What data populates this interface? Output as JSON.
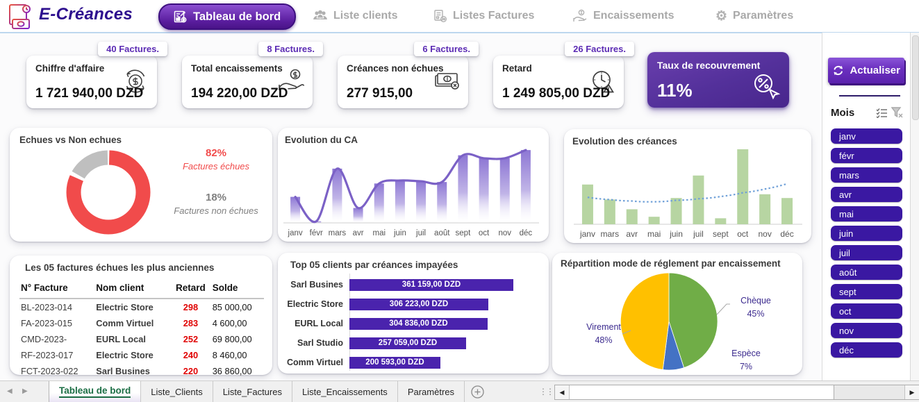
{
  "header": {
    "app_title": "E-Créances",
    "tabs": [
      {
        "label": "Tableau de bord",
        "icon": "dashboard-icon",
        "active": true
      },
      {
        "label": "Liste clients",
        "icon": "clients-icon",
        "active": false
      },
      {
        "label": "Listes Factures",
        "icon": "invoices-icon",
        "active": false
      },
      {
        "label": "Encaissements",
        "icon": "cash-hand-icon",
        "active": false
      },
      {
        "label": "Paramètres",
        "icon": "gear-icon",
        "active": false
      }
    ]
  },
  "kpis": [
    {
      "badge": "40 Factures.",
      "title": "Chiffre d'affaire",
      "value": "1 721 940,00 DZD",
      "icon": "dollar-cycle-icon"
    },
    {
      "badge": "8 Factures.",
      "title": "Total encaissements",
      "value": "194 220,00 DZD",
      "icon": "hand-dollar-icon"
    },
    {
      "badge": "6 Factures.",
      "title": "Créances non échues",
      "value": "277 915,00",
      "icon": "banknote-x-icon"
    },
    {
      "badge": "26 Factures.",
      "title": "Retard",
      "value": "1 249 805,00 DZD",
      "icon": "clock-alert-icon"
    }
  ],
  "recovery": {
    "title": "Taux de recouvrement",
    "value": "11%",
    "icon": "percent-cursor-icon"
  },
  "refresh_button": {
    "label": "Actualiser",
    "icon": "refresh-icon"
  },
  "slicer": {
    "title": "Mois",
    "multiselect_icon": "multiselect-icon",
    "clear_filter_icon": "clear-filter-icon",
    "months": [
      "janv",
      "févr",
      "mars",
      "avr",
      "mai",
      "juin",
      "juil",
      "août",
      "sept",
      "oct",
      "nov",
      "déc"
    ]
  },
  "chart_data": [
    {
      "id": "echues_vs_non_echues",
      "type": "pie",
      "variant": "donut",
      "title": "Echues vs Non echues",
      "legend_position": "right",
      "slices": [
        {
          "label": "Factures échues",
          "value": 82,
          "pct_label": "82%",
          "color": "#f14b4b"
        },
        {
          "label": "Factures non échues",
          "value": 18,
          "pct_label": "18%",
          "color": "#bfbfbf"
        }
      ]
    },
    {
      "id": "evolution_ca",
      "type": "bar",
      "variant": "gradient-bars-with-smooth-line",
      "title": "Evolution du CA",
      "categories": [
        "janv",
        "févr",
        "mars",
        "avr",
        "mai",
        "juin",
        "juil",
        "août",
        "sept",
        "oct",
        "nov",
        "déc"
      ],
      "values": [
        35,
        2,
        73,
        20,
        53,
        57,
        56,
        55,
        91,
        87,
        87,
        98
      ],
      "ylim": [
        0,
        100
      ],
      "grid": false,
      "line_color": "#7b61c6",
      "bar_color": "#8d77d4"
    },
    {
      "id": "evolution_creances",
      "type": "bar",
      "variant": "bars-with-dotted-trend",
      "title": "Evolution des créances",
      "categories": [
        "janv",
        "mars",
        "avr",
        "mai",
        "juin",
        "juil",
        "sept",
        "oct",
        "nov",
        "déc"
      ],
      "values": [
        53,
        33,
        20,
        10,
        35,
        65,
        8,
        100,
        40,
        35
      ],
      "trend": [
        36,
        33,
        31,
        30,
        32,
        34,
        37,
        42,
        47,
        54
      ],
      "ylim": [
        0,
        100
      ],
      "grid": false,
      "bar_color": "#b7d5a2",
      "trend_color": "#6fa0d8"
    },
    {
      "id": "top5_clients_impayes",
      "type": "bar",
      "variant": "horizontal",
      "title": "Top 05 clients par créances impayées",
      "categories": [
        "Sarl Busines",
        "Electric Store",
        "EURL Local",
        "Sarl Studio",
        "Comm Virtuel"
      ],
      "values": [
        361159,
        306223,
        304836,
        257059,
        200593
      ],
      "value_labels": [
        "361 159,00 DZD",
        "306 223,00 DZD",
        "304 836,00 DZD",
        "257 059,00 DZD",
        "200 593,00 DZD"
      ],
      "bar_color": "#4a23ad"
    },
    {
      "id": "mode_reglement",
      "type": "pie",
      "title": "Répartition mode de réglement par encaissement",
      "slices": [
        {
          "label": "Chèque",
          "value": 45,
          "pct_label": "45%",
          "color": "#70ad47"
        },
        {
          "label": "Espèce",
          "value": 7,
          "pct_label": "7%",
          "color": "#4472c4"
        },
        {
          "label": "Virement",
          "value": 48,
          "pct_label": "48%",
          "color": "#ffc000"
        }
      ]
    }
  ],
  "table": {
    "title": "Les 05 factures échues les plus anciennes",
    "headers": [
      "N° Facture",
      "Nom client",
      "Retard",
      "Solde"
    ],
    "rows": [
      {
        "facture": "BL-2023-014",
        "client": "Electric Store",
        "retard": "298",
        "solde": "85 000,00"
      },
      {
        "facture": "FA-2023-015",
        "client": "Comm Virtuel",
        "retard": "283",
        "solde": "4 600,00"
      },
      {
        "facture": "CMD-2023-",
        "client": "EURL Local",
        "retard": "252",
        "solde": "69 800,00"
      },
      {
        "facture": "RF-2023-017",
        "client": "Electric Store",
        "retard": "240",
        "solde": "8 460,00"
      },
      {
        "facture": "FCT-2023-022",
        "client": "Sarl Busines",
        "retard": "220",
        "solde": "36 860,00"
      }
    ]
  },
  "sheet_bar": {
    "tabs": [
      {
        "label": "Tableau de bord",
        "active": true
      },
      {
        "label": "Liste_Clients",
        "active": false
      },
      {
        "label": "Liste_Factures",
        "active": false
      },
      {
        "label": "Liste_Encaissements",
        "active": false
      },
      {
        "label": "Paramètres",
        "active": false
      }
    ]
  },
  "colors": {
    "brand_purple": "#2d0f8e",
    "accent_purple": "#5b2bb4",
    "slicer_purple": "#3a18a2",
    "donut_red": "#f14b4b",
    "donut_gray": "#bfbfbf",
    "retard_red": "#e00000",
    "excel_green": "#1b6e44"
  }
}
